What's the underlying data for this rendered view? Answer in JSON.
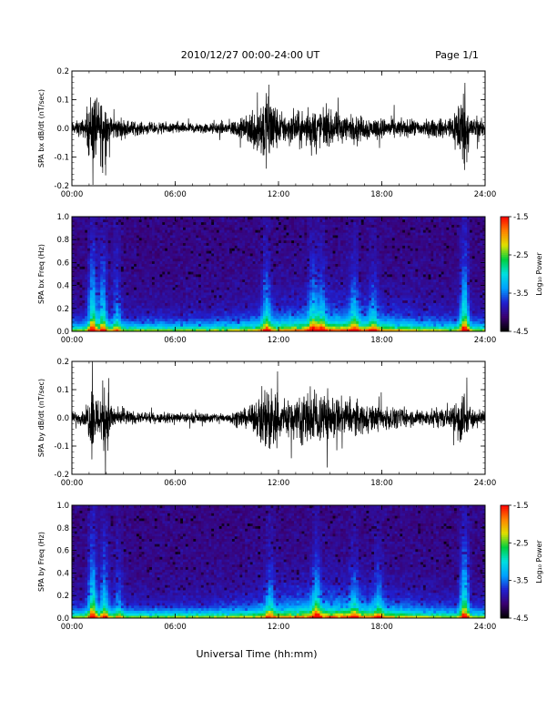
{
  "header": {
    "title": "2010/12/27  00:00-24:00 UT",
    "page": "Page 1/1"
  },
  "x_axis": {
    "label": "Universal Time (hh:mm)",
    "range_hours": [
      0,
      24
    ],
    "ticks": [
      "00:00",
      "06:00",
      "12:00",
      "18:00",
      "24:00"
    ]
  },
  "colorbar": {
    "label": "Log₁₀ Power",
    "ticks": [
      "-1.5",
      "-2.5",
      "-3.5",
      "-4.5"
    ],
    "range": [
      -4.5,
      -1.5
    ],
    "colors": [
      "#000000",
      "#3a0070",
      "#2020d0",
      "#00a0ff",
      "#00e0e0",
      "#00d040",
      "#e0e000",
      "#ff8000",
      "#ff0000"
    ]
  },
  "chart_data": [
    {
      "type": "line",
      "ylabel": "SPA bx dB/dt (nT/sec)",
      "xlim": [
        0,
        24
      ],
      "ylim": [
        -0.2,
        0.2
      ],
      "yticks": [
        "0.2",
        "0.1",
        "0.0",
        "-0.1",
        "-0.2"
      ],
      "noise_profile": [
        {
          "t": 0.0,
          "amp": 0.03
        },
        {
          "t": 0.8,
          "amp": 0.05
        },
        {
          "t": 1.2,
          "amp": 0.22
        },
        {
          "t": 1.5,
          "amp": 0.12
        },
        {
          "t": 1.8,
          "amp": 0.2
        },
        {
          "t": 2.2,
          "amp": 0.06
        },
        {
          "t": 4.0,
          "amp": 0.03
        },
        {
          "t": 8.0,
          "amp": 0.025
        },
        {
          "t": 10.0,
          "amp": 0.05
        },
        {
          "t": 11.5,
          "amp": 0.22
        },
        {
          "t": 12.0,
          "amp": 0.08
        },
        {
          "t": 13.5,
          "amp": 0.08
        },
        {
          "t": 14.0,
          "amp": 0.1
        },
        {
          "t": 16.0,
          "amp": 0.07
        },
        {
          "t": 18.0,
          "amp": 0.05
        },
        {
          "t": 20.0,
          "amp": 0.04
        },
        {
          "t": 22.0,
          "amp": 0.05
        },
        {
          "t": 22.7,
          "amp": 0.2
        },
        {
          "t": 23.2,
          "amp": 0.06
        },
        {
          "t": 24.0,
          "amp": 0.04
        }
      ]
    },
    {
      "type": "heatmap",
      "ylabel": "SPA bx Freq (Hz)",
      "xlim": [
        0,
        24
      ],
      "ylim": [
        0.0,
        1.0
      ],
      "yticks": [
        "1.0",
        "0.8",
        "0.6",
        "0.4",
        "0.2",
        "0.0"
      ],
      "colorbar": {
        "range": [
          -4.5,
          -1.5
        ]
      },
      "activity_bands": [
        {
          "t": 1.2,
          "strength": 1.0
        },
        {
          "t": 1.8,
          "strength": 0.8
        },
        {
          "t": 2.6,
          "strength": 0.5
        },
        {
          "t": 11.3,
          "strength": 0.6
        },
        {
          "t": 14.0,
          "strength": 0.6
        },
        {
          "t": 14.5,
          "strength": 0.5
        },
        {
          "t": 16.4,
          "strength": 0.5
        },
        {
          "t": 17.5,
          "strength": 0.4
        },
        {
          "t": 22.8,
          "strength": 1.0
        }
      ]
    },
    {
      "type": "line",
      "ylabel": "SPA by dB/dt (nT/sec)",
      "xlim": [
        0,
        24
      ],
      "ylim": [
        -0.2,
        0.2
      ],
      "yticks": [
        "0.2",
        "0.1",
        "0.0",
        "-0.1",
        "-0.2"
      ],
      "noise_profile": [
        {
          "t": 0.0,
          "amp": 0.025
        },
        {
          "t": 0.8,
          "amp": 0.04
        },
        {
          "t": 1.2,
          "amp": 0.2
        },
        {
          "t": 1.5,
          "amp": 0.1
        },
        {
          "t": 1.9,
          "amp": 0.2
        },
        {
          "t": 2.4,
          "amp": 0.05
        },
        {
          "t": 4.0,
          "amp": 0.025
        },
        {
          "t": 9.0,
          "amp": 0.025
        },
        {
          "t": 10.5,
          "amp": 0.06
        },
        {
          "t": 11.6,
          "amp": 0.2
        },
        {
          "t": 12.2,
          "amp": 0.09
        },
        {
          "t": 14.0,
          "amp": 0.14
        },
        {
          "t": 15.5,
          "amp": 0.1
        },
        {
          "t": 18.0,
          "amp": 0.06
        },
        {
          "t": 20.0,
          "amp": 0.04
        },
        {
          "t": 22.0,
          "amp": 0.05
        },
        {
          "t": 22.6,
          "amp": 0.15
        },
        {
          "t": 23.2,
          "amp": 0.05
        },
        {
          "t": 24.0,
          "amp": 0.03
        }
      ]
    },
    {
      "type": "heatmap",
      "ylabel": "SPA by Freq (Hz)",
      "xlim": [
        0,
        24
      ],
      "ylim": [
        0.0,
        1.0
      ],
      "yticks": [
        "1.0",
        "0.8",
        "0.6",
        "0.4",
        "0.2",
        "0.0"
      ],
      "colorbar": {
        "range": [
          -4.5,
          -1.5
        ]
      },
      "activity_bands": [
        {
          "t": 1.2,
          "strength": 1.0
        },
        {
          "t": 1.9,
          "strength": 0.7
        },
        {
          "t": 2.7,
          "strength": 0.4
        },
        {
          "t": 11.5,
          "strength": 0.5
        },
        {
          "t": 14.2,
          "strength": 0.6
        },
        {
          "t": 16.4,
          "strength": 0.4
        },
        {
          "t": 17.8,
          "strength": 0.4
        },
        {
          "t": 22.8,
          "strength": 1.0
        }
      ]
    }
  ]
}
